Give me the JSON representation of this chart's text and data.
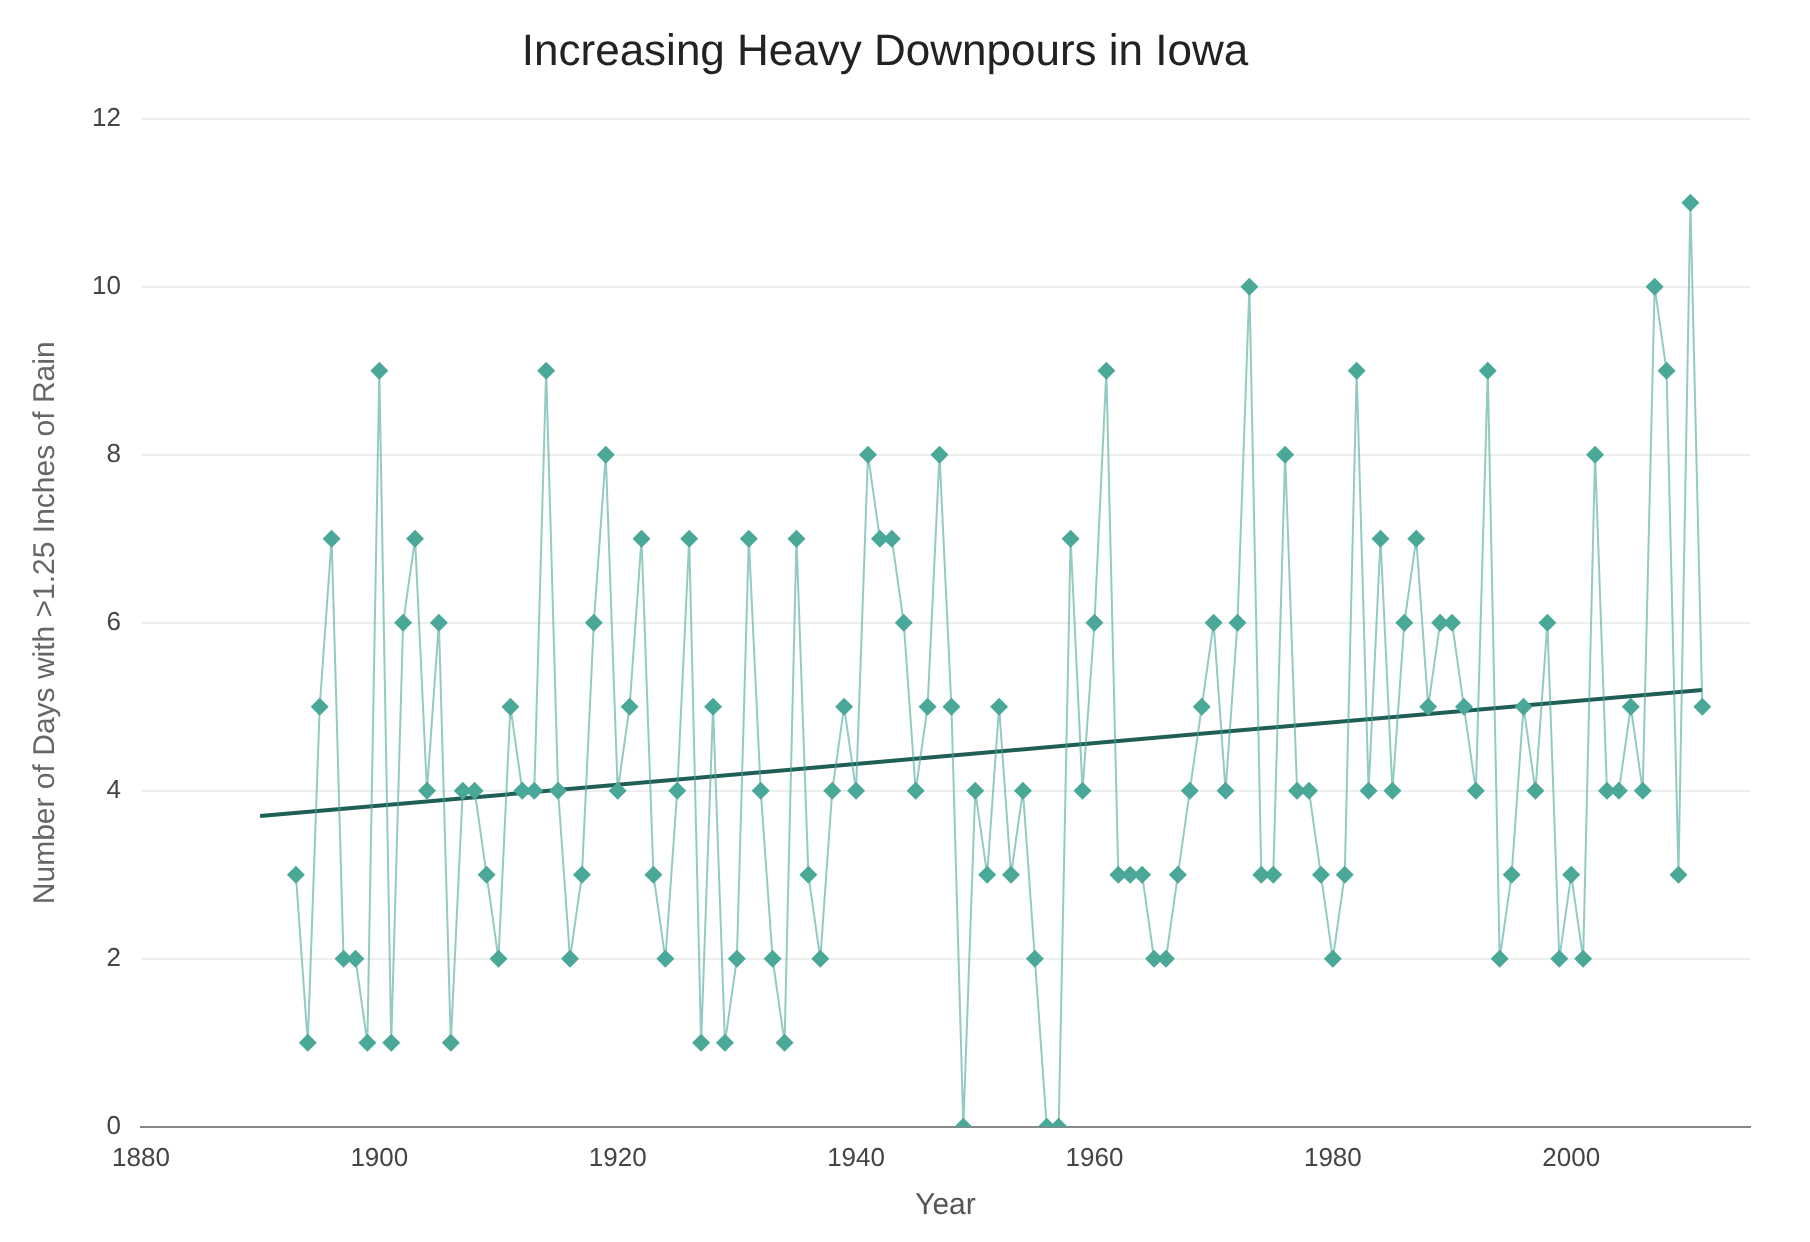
{
  "chart_data": {
    "type": "line",
    "title": "Increasing Heavy Downpours in Iowa",
    "xlabel": "Year",
    "ylabel": "Number of Days with >1.25 Inches of Rain",
    "xlim": [
      1880,
      2015
    ],
    "xticks": [
      1880,
      1900,
      1920,
      1940,
      1960,
      1980,
      2000
    ],
    "ylim": [
      0,
      12
    ],
    "yticks": [
      0,
      2,
      4,
      6,
      8,
      10,
      12
    ],
    "grid": "y",
    "legend": false,
    "series": [
      {
        "color": "#4aa898",
        "marker": "diamond",
        "x": [
          1893,
          1894,
          1895,
          1896,
          1897,
          1898,
          1899,
          1900,
          1901,
          1902,
          1903,
          1904,
          1905,
          1906,
          1907,
          1908,
          1909,
          1910,
          1911,
          1912,
          1913,
          1914,
          1915,
          1916,
          1917,
          1918,
          1919,
          1920,
          1921,
          1922,
          1923,
          1924,
          1925,
          1926,
          1927,
          1928,
          1929,
          1930,
          1931,
          1932,
          1933,
          1934,
          1935,
          1936,
          1937,
          1938,
          1939,
          1940,
          1941,
          1942,
          1943,
          1944,
          1945,
          1946,
          1947,
          1948,
          1949,
          1950,
          1951,
          1952,
          1953,
          1954,
          1955,
          1956,
          1957,
          1958,
          1959,
          1960,
          1961,
          1962,
          1963,
          1964,
          1965,
          1966,
          1967,
          1968,
          1969,
          1970,
          1971,
          1972,
          1973,
          1974,
          1975,
          1976,
          1977,
          1978,
          1979,
          1980,
          1981,
          1982,
          1983,
          1984,
          1985,
          1986,
          1987,
          1988,
          1989,
          1990,
          1991,
          1992,
          1993,
          1994,
          1995,
          1996,
          1997,
          1998,
          1999,
          2000,
          2001,
          2002,
          2003,
          2004,
          2005,
          2006,
          2007,
          2008,
          2009,
          2010,
          2011
        ],
        "values": [
          3,
          1,
          5,
          7,
          2,
          2,
          1,
          9,
          1,
          6,
          7,
          4,
          6,
          1,
          4,
          4,
          3,
          2,
          5,
          4,
          4,
          9,
          4,
          2,
          3,
          6,
          8,
          4,
          5,
          7,
          3,
          2,
          4,
          7,
          1,
          5,
          1,
          2,
          7,
          4,
          2,
          1,
          7,
          3,
          2,
          4,
          5,
          4,
          8,
          7,
          7,
          6,
          4,
          5,
          8,
          5,
          0,
          4,
          3,
          5,
          3,
          4,
          2,
          0,
          0,
          7,
          4,
          6,
          9,
          3,
          3,
          3,
          2,
          2,
          3,
          4,
          5,
          6,
          4,
          6,
          10,
          3,
          3,
          8,
          4,
          4,
          3,
          2,
          3,
          9,
          4,
          7,
          4,
          6,
          7,
          5,
          6,
          6,
          5,
          4,
          9,
          2,
          3,
          5,
          4,
          6,
          2,
          3,
          2,
          8,
          4,
          4,
          5,
          4,
          10,
          9,
          3,
          11,
          5
        ]
      },
      {
        "color": "#1f5f55",
        "marker": "none",
        "x": [
          1890,
          2011
        ],
        "values": [
          3.7,
          5.2
        ]
      }
    ]
  }
}
